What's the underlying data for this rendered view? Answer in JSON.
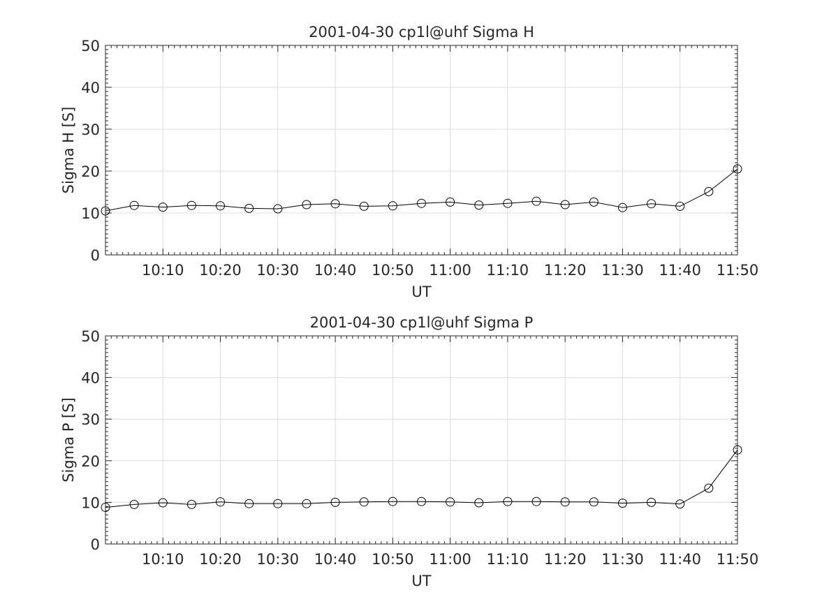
{
  "chart_data": [
    {
      "type": "line",
      "title": "2001-04-30  cp1l@uhf Sigma H",
      "xlabel": "UT",
      "ylabel": "Sigma H [S]",
      "xlim": [
        "10:00",
        "11:50"
      ],
      "ylim": [
        0,
        50
      ],
      "xticks": [
        "10:10",
        "10:20",
        "10:30",
        "10:40",
        "10:50",
        "11:00",
        "11:10",
        "11:20",
        "11:30",
        "11:40",
        "11:50"
      ],
      "yticks": [
        0,
        10,
        20,
        30,
        40,
        50
      ],
      "grid": true,
      "marker": "circle",
      "x": [
        "10:00",
        "10:05",
        "10:10",
        "10:15",
        "10:20",
        "10:25",
        "10:30",
        "10:35",
        "10:40",
        "10:45",
        "10:50",
        "10:55",
        "11:00",
        "11:05",
        "11:10",
        "11:15",
        "11:20",
        "11:25",
        "11:30",
        "11:35",
        "11:40",
        "11:45",
        "11:50"
      ],
      "values": [
        10.5,
        11.8,
        11.4,
        11.8,
        11.7,
        11.1,
        11.0,
        12.0,
        12.2,
        11.6,
        11.7,
        12.3,
        12.6,
        11.9,
        12.3,
        12.8,
        12.0,
        12.6,
        11.3,
        12.2,
        11.6,
        15.1,
        20.5
      ]
    },
    {
      "type": "line",
      "title": "2001-04-30  cp1l@uhf Sigma P",
      "xlabel": "UT",
      "ylabel": "Sigma P [S]",
      "xlim": [
        "10:00",
        "11:50"
      ],
      "ylim": [
        0,
        50
      ],
      "xticks": [
        "10:10",
        "10:20",
        "10:30",
        "10:40",
        "10:50",
        "11:00",
        "11:10",
        "11:20",
        "11:30",
        "11:40",
        "11:50"
      ],
      "yticks": [
        0,
        10,
        20,
        30,
        40,
        50
      ],
      "grid": true,
      "marker": "circle",
      "x": [
        "10:00",
        "10:05",
        "10:10",
        "10:15",
        "10:20",
        "10:25",
        "10:30",
        "10:35",
        "10:40",
        "10:45",
        "10:50",
        "10:55",
        "11:00",
        "11:05",
        "11:10",
        "11:15",
        "11:20",
        "11:25",
        "11:30",
        "11:35",
        "11:40",
        "11:45",
        "11:50"
      ],
      "values": [
        8.8,
        9.5,
        9.9,
        9.5,
        10.1,
        9.7,
        9.7,
        9.7,
        10.0,
        10.1,
        10.2,
        10.2,
        10.1,
        9.9,
        10.2,
        10.2,
        10.1,
        10.1,
        9.8,
        10.0,
        9.6,
        13.4,
        22.6
      ]
    }
  ]
}
